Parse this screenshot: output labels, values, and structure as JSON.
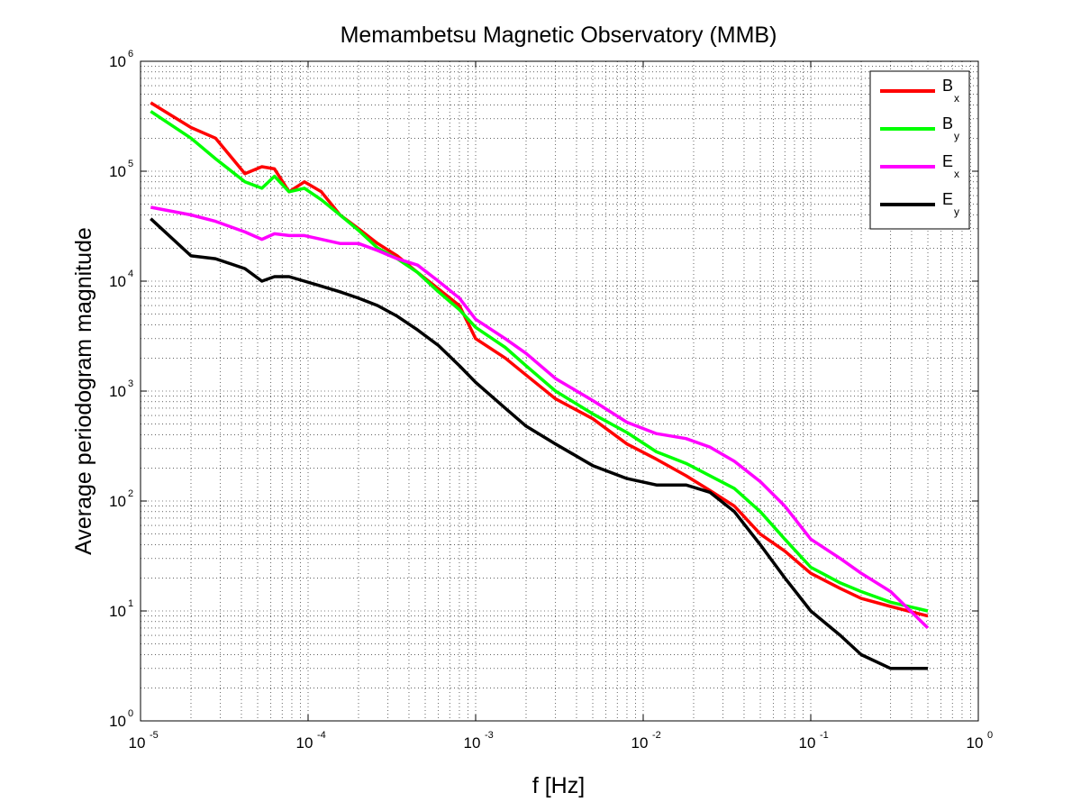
{
  "chart_data": {
    "type": "line",
    "title": "Memambetsu Magnetic Observatory (MMB)",
    "xlabel": "f [Hz]",
    "ylabel": "Average periodogram magnitude",
    "xscale": "log",
    "yscale": "log",
    "xlim": [
      1e-05,
      1
    ],
    "ylim": [
      1,
      1000000
    ],
    "grid": true,
    "legend_position": "top-right",
    "x_ticks": [
      {
        "base": "10",
        "exp": "-5",
        "value": 1e-05
      },
      {
        "base": "10",
        "exp": "-4",
        "value": 0.0001
      },
      {
        "base": "10",
        "exp": "-3",
        "value": 0.001
      },
      {
        "base": "10",
        "exp": "-2",
        "value": 0.01
      },
      {
        "base": "10",
        "exp": "-1",
        "value": 0.1
      },
      {
        "base": "10",
        "exp": "0",
        "value": 1
      }
    ],
    "y_ticks": [
      {
        "base": "10",
        "exp": "0",
        "value": 1
      },
      {
        "base": "10",
        "exp": "1",
        "value": 10
      },
      {
        "base": "10",
        "exp": "2",
        "value": 100
      },
      {
        "base": "10",
        "exp": "3",
        "value": 1000
      },
      {
        "base": "10",
        "exp": "4",
        "value": 10000
      },
      {
        "base": "10",
        "exp": "5",
        "value": 100000
      },
      {
        "base": "10",
        "exp": "6",
        "value": 1000000
      }
    ],
    "series": [
      {
        "name": "Bx",
        "label_main": "B",
        "label_sub": "x",
        "color": "#ff0000",
        "x": [
          1.15e-05,
          2e-05,
          2.8e-05,
          4.2e-05,
          5.3e-05,
          6.3e-05,
          7.7e-05,
          9.5e-05,
          0.00012,
          0.000155,
          0.0002,
          0.00026,
          0.00034,
          0.00045,
          0.0006,
          0.0008,
          0.001,
          0.0015,
          0.002,
          0.003,
          0.005,
          0.008,
          0.012,
          0.018,
          0.025,
          0.035,
          0.05,
          0.07,
          0.1,
          0.15,
          0.2,
          0.3,
          0.5
        ],
        "y": [
          420000,
          250000,
          200000,
          95000,
          110000,
          105000,
          65000,
          80000,
          65000,
          40000,
          30000,
          22000,
          17000,
          12000,
          8500,
          6000,
          3000,
          2000,
          1400,
          850,
          560,
          330,
          240,
          170,
          125,
          90,
          50,
          35,
          22,
          16,
          13,
          11,
          9
        ]
      },
      {
        "name": "By",
        "label_main": "B",
        "label_sub": "y",
        "color": "#00ff00",
        "x": [
          1.15e-05,
          2e-05,
          2.8e-05,
          4.2e-05,
          5.3e-05,
          6.3e-05,
          7.7e-05,
          9.5e-05,
          0.00012,
          0.000155,
          0.0002,
          0.00026,
          0.00034,
          0.00045,
          0.0006,
          0.0008,
          0.001,
          0.0015,
          0.002,
          0.003,
          0.005,
          0.008,
          0.012,
          0.018,
          0.025,
          0.035,
          0.05,
          0.07,
          0.1,
          0.15,
          0.2,
          0.3,
          0.5
        ],
        "y": [
          350000,
          200000,
          130000,
          80000,
          70000,
          90000,
          65000,
          70000,
          55000,
          40000,
          29000,
          20000,
          16000,
          12000,
          8000,
          5500,
          3800,
          2500,
          1700,
          1000,
          620,
          420,
          280,
          220,
          170,
          130,
          80,
          45,
          25,
          18,
          15,
          12,
          10
        ]
      },
      {
        "name": "Ex",
        "label_main": "E",
        "label_sub": "x",
        "color": "#ff00ff",
        "x": [
          1.15e-05,
          2e-05,
          2.8e-05,
          4.2e-05,
          5.3e-05,
          6.3e-05,
          7.7e-05,
          9.5e-05,
          0.00012,
          0.000155,
          0.0002,
          0.00026,
          0.00034,
          0.00045,
          0.0006,
          0.0008,
          0.001,
          0.0015,
          0.002,
          0.003,
          0.005,
          0.008,
          0.012,
          0.018,
          0.025,
          0.035,
          0.05,
          0.07,
          0.1,
          0.15,
          0.2,
          0.3,
          0.5
        ],
        "y": [
          47000,
          40000,
          35000,
          28000,
          24000,
          27000,
          26000,
          26000,
          24000,
          22000,
          22000,
          19000,
          16000,
          14000,
          10000,
          7000,
          4500,
          3000,
          2200,
          1300,
          820,
          520,
          410,
          370,
          310,
          230,
          150,
          90,
          45,
          30,
          22,
          15,
          7
        ]
      },
      {
        "name": "Ey",
        "label_main": "E",
        "label_sub": "y",
        "color": "#000000",
        "x": [
          1.15e-05,
          2e-05,
          2.8e-05,
          4.2e-05,
          5.3e-05,
          6.3e-05,
          7.7e-05,
          9.5e-05,
          0.00012,
          0.000155,
          0.0002,
          0.00026,
          0.00034,
          0.00045,
          0.0006,
          0.0008,
          0.001,
          0.0015,
          0.002,
          0.003,
          0.005,
          0.008,
          0.012,
          0.018,
          0.025,
          0.035,
          0.05,
          0.07,
          0.1,
          0.15,
          0.2,
          0.3,
          0.5
        ],
        "y": [
          37000,
          17000,
          16000,
          13000,
          10000,
          11000,
          11000,
          10000,
          9000,
          8000,
          7000,
          6000,
          4800,
          3600,
          2600,
          1700,
          1200,
          700,
          480,
          330,
          210,
          160,
          140,
          140,
          120,
          80,
          40,
          20,
          10,
          6,
          4,
          3,
          3
        ]
      }
    ]
  }
}
